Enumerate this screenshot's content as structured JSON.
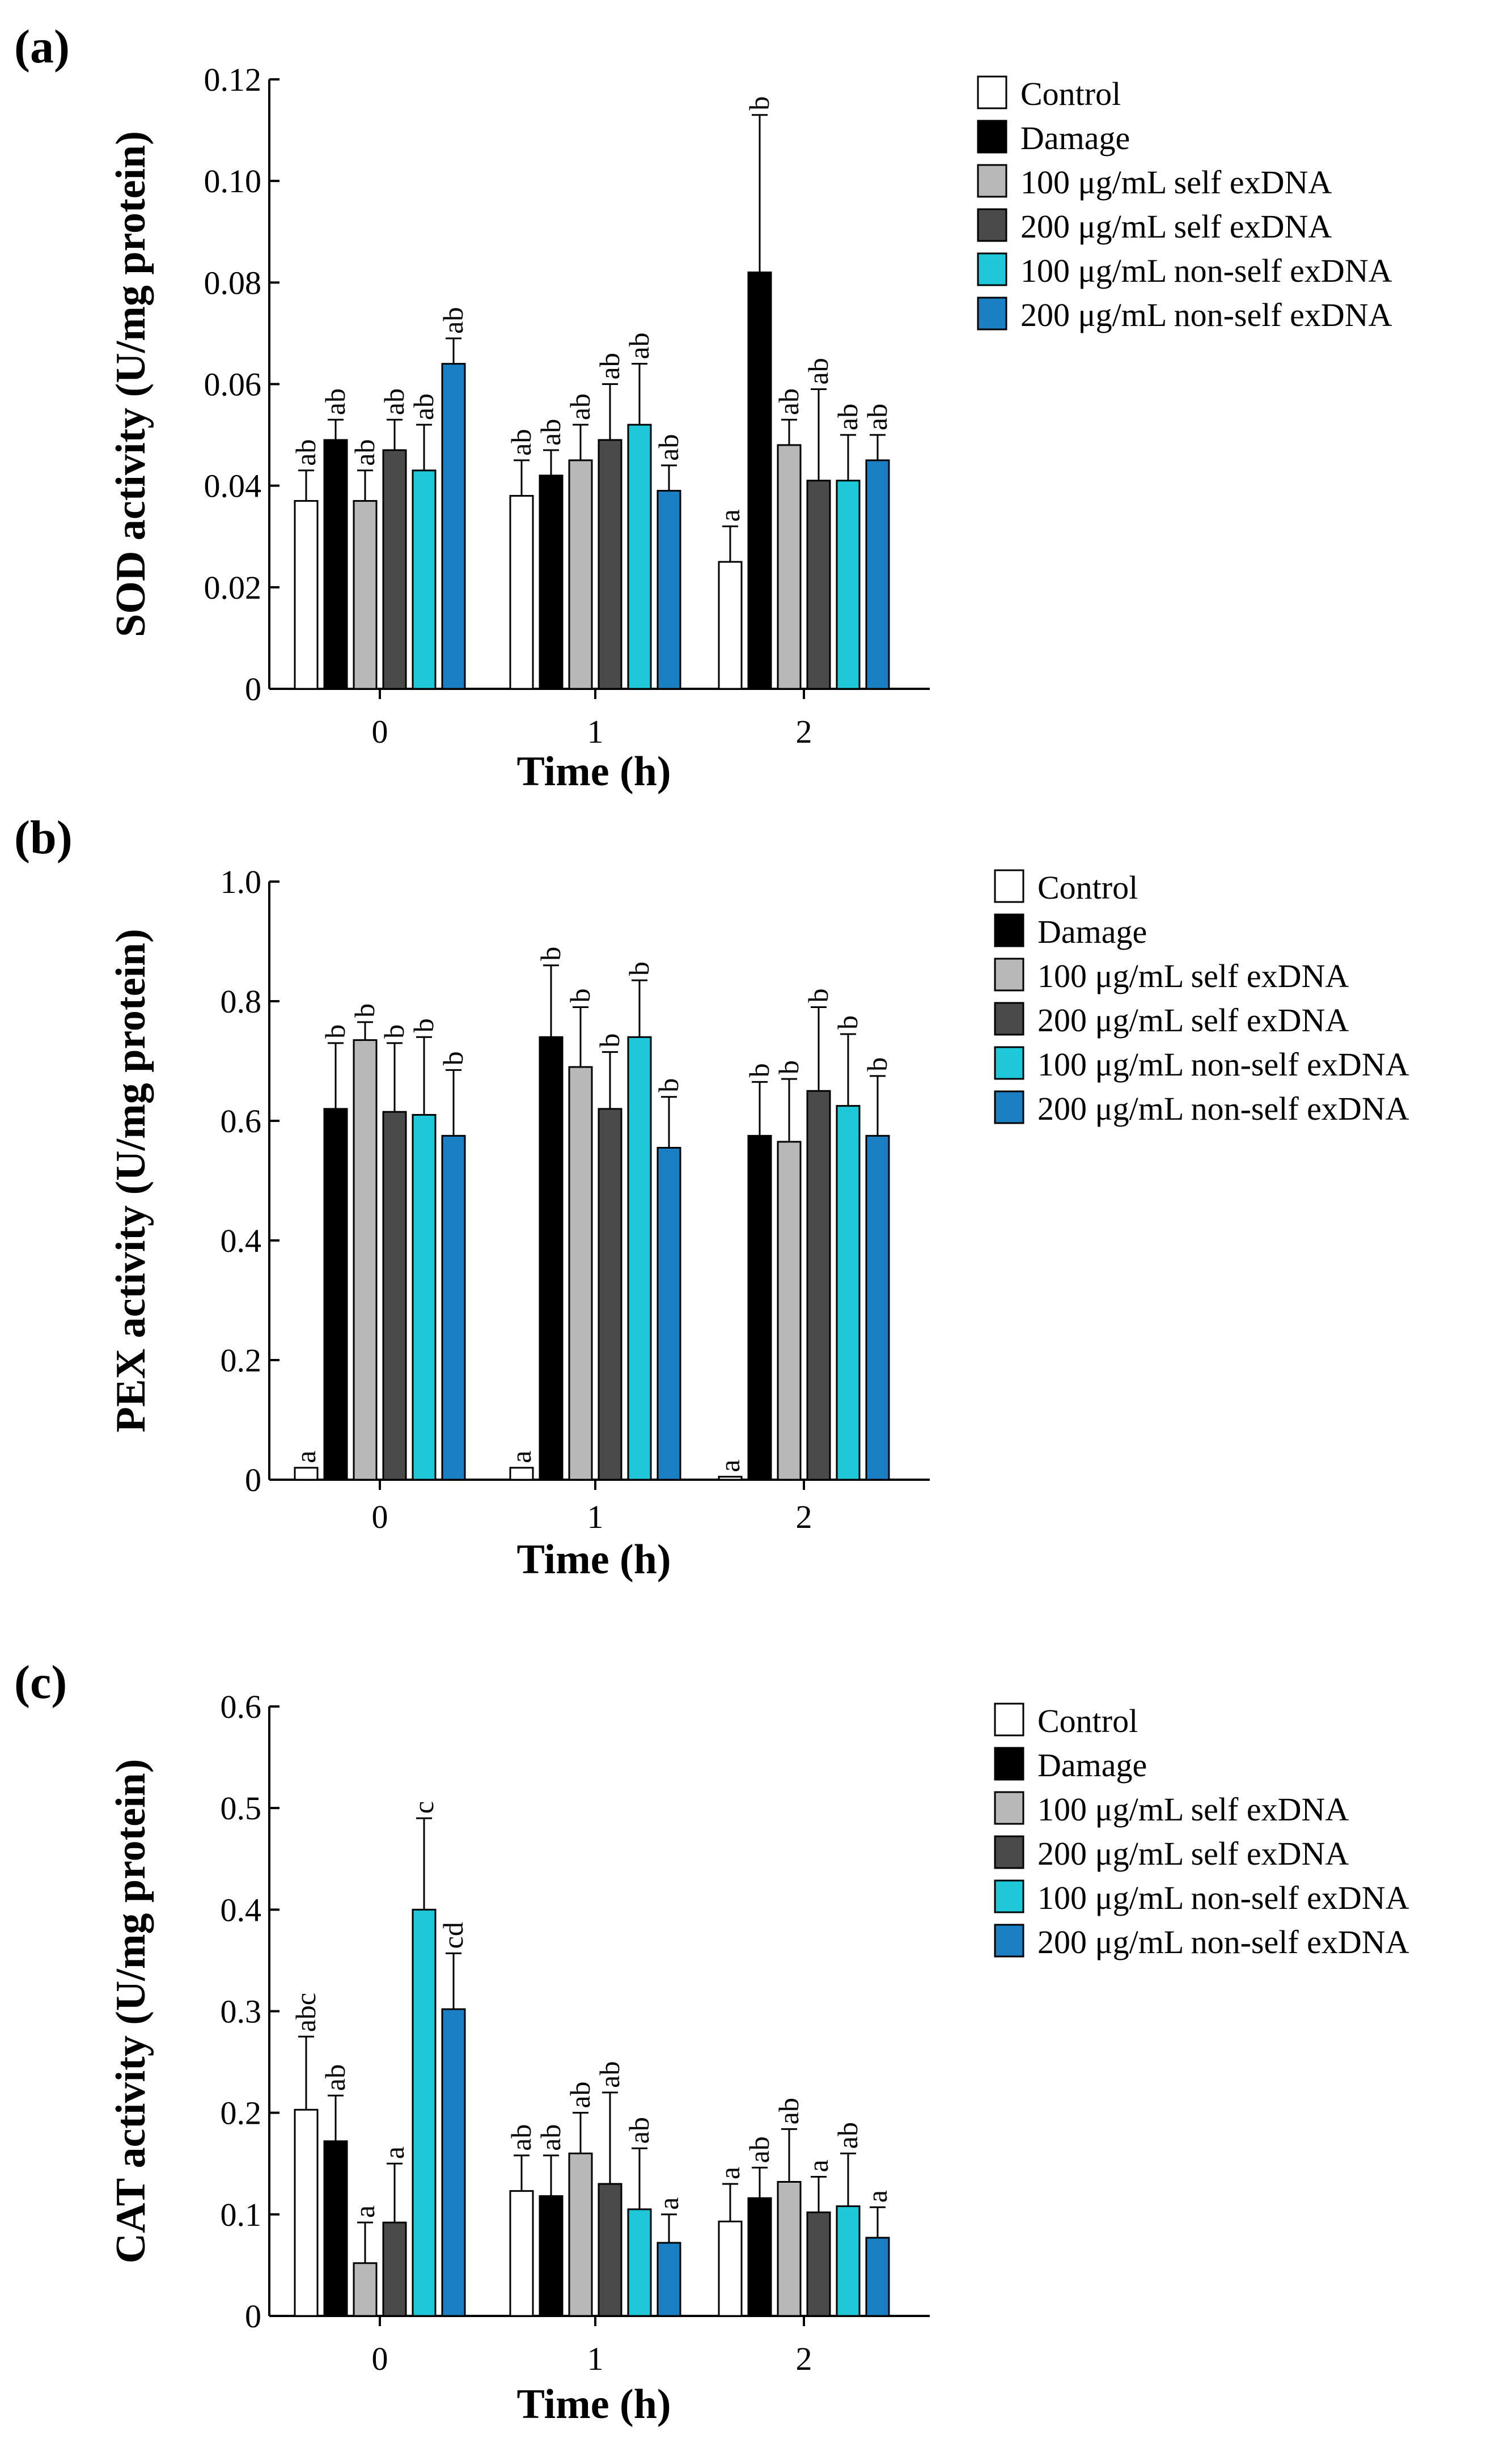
{
  "chart_data": [
    {
      "type": "bar",
      "panel_label": "(a)",
      "ylabel": "SOD activity (U/mg protein)",
      "xlabel": "Time (h)",
      "categories": [
        "0",
        "1",
        "2"
      ],
      "ylim": [
        0,
        0.12
      ],
      "yticks": [
        0,
        0.02,
        0.04,
        0.06,
        0.08,
        0.1,
        0.12
      ],
      "ytick_labels": [
        "0",
        "0.02",
        "0.04",
        "0.06",
        "0.08",
        "0.10",
        "0.12"
      ],
      "legend_position": "right",
      "series": [
        {
          "name": "Control",
          "color": "#ffffff",
          "values": [
            0.037,
            0.038,
            0.025
          ],
          "errors": [
            0.006,
            0.007,
            0.007
          ],
          "labels": [
            "ab",
            "ab",
            "a"
          ]
        },
        {
          "name": "Damage",
          "color": "#000000",
          "values": [
            0.049,
            0.042,
            0.082
          ],
          "errors": [
            0.004,
            0.005,
            0.031
          ],
          "labels": [
            "ab",
            "ab",
            "b"
          ]
        },
        {
          "name": "100 μg/mL self exDNA",
          "color": "#b8b8b8",
          "values": [
            0.037,
            0.045,
            0.048
          ],
          "errors": [
            0.006,
            0.007,
            0.005
          ],
          "labels": [
            "ab",
            "ab",
            "ab"
          ]
        },
        {
          "name": "200 μg/mL self exDNA",
          "color": "#4a4a4a",
          "values": [
            0.047,
            0.049,
            0.041
          ],
          "errors": [
            0.006,
            0.011,
            0.018
          ],
          "labels": [
            "ab",
            "ab",
            "ab"
          ]
        },
        {
          "name": "100 μg/mL non-self exDNA",
          "color": "#1ec8d8",
          "values": [
            0.043,
            0.052,
            0.041
          ],
          "errors": [
            0.009,
            0.012,
            0.009
          ],
          "labels": [
            "ab",
            "ab",
            "ab"
          ]
        },
        {
          "name": "200 μg/mL non-self exDNA",
          "color": "#1b7fc4",
          "values": [
            0.064,
            0.039,
            0.045
          ],
          "errors": [
            0.005,
            0.005,
            0.005
          ],
          "labels": [
            "ab",
            "ab",
            "ab"
          ]
        }
      ]
    },
    {
      "type": "bar",
      "panel_label": "(b)",
      "ylabel": "PEX activity (U/mg protein)",
      "xlabel": "Time (h)",
      "categories": [
        "0",
        "1",
        "2"
      ],
      "ylim": [
        0,
        1.0
      ],
      "yticks": [
        0,
        0.2,
        0.4,
        0.6,
        0.8,
        1.0
      ],
      "ytick_labels": [
        "0",
        "0.2",
        "0.4",
        "0.6",
        "0.8",
        "1.0"
      ],
      "legend_position": "right",
      "series": [
        {
          "name": "Control",
          "color": "#ffffff",
          "values": [
            0.02,
            0.02,
            0.005
          ],
          "errors": [
            0.0,
            0.0,
            0.0
          ],
          "labels": [
            "a",
            "a",
            "a"
          ]
        },
        {
          "name": "Damage",
          "color": "#000000",
          "values": [
            0.62,
            0.74,
            0.575
          ],
          "errors": [
            0.11,
            0.12,
            0.09
          ],
          "labels": [
            "b",
            "b",
            "b"
          ]
        },
        {
          "name": "100 μg/mL self exDNA",
          "color": "#b8b8b8",
          "values": [
            0.735,
            0.69,
            0.565
          ],
          "errors": [
            0.03,
            0.1,
            0.105
          ],
          "labels": [
            "b",
            "b",
            "b"
          ]
        },
        {
          "name": "200 μg/mL self exDNA",
          "color": "#4a4a4a",
          "values": [
            0.615,
            0.62,
            0.65
          ],
          "errors": [
            0.115,
            0.095,
            0.14
          ],
          "labels": [
            "b",
            "b",
            "b"
          ]
        },
        {
          "name": "100 μg/mL non-self exDNA",
          "color": "#1ec8d8",
          "values": [
            0.61,
            0.74,
            0.625
          ],
          "errors": [
            0.13,
            0.095,
            0.12
          ],
          "labels": [
            "b",
            "b",
            "b"
          ]
        },
        {
          "name": "200 μg/mL non-self exDNA",
          "color": "#1b7fc4",
          "values": [
            0.575,
            0.555,
            0.575
          ],
          "errors": [
            0.11,
            0.085,
            0.1
          ],
          "labels": [
            "b",
            "b",
            "b"
          ]
        }
      ]
    },
    {
      "type": "bar",
      "panel_label": "(c)",
      "ylabel": "CAT activity (U/mg protein)",
      "xlabel": "Time (h)",
      "categories": [
        "0",
        "1",
        "2"
      ],
      "ylim": [
        0,
        0.6
      ],
      "yticks": [
        0,
        0.1,
        0.2,
        0.3,
        0.4,
        0.5,
        0.6
      ],
      "ytick_labels": [
        "0",
        "0.1",
        "0.2",
        "0.3",
        "0.4",
        "0.5",
        "0.6"
      ],
      "legend_position": "right",
      "series": [
        {
          "name": "Control",
          "color": "#ffffff",
          "values": [
            0.203,
            0.123,
            0.093
          ],
          "errors": [
            0.072,
            0.035,
            0.037
          ],
          "labels": [
            "abc",
            "ab",
            "a"
          ]
        },
        {
          "name": "Damage",
          "color": "#000000",
          "values": [
            0.172,
            0.118,
            0.116
          ],
          "errors": [
            0.045,
            0.04,
            0.03
          ],
          "labels": [
            "ab",
            "ab",
            "ab"
          ]
        },
        {
          "name": "100 μg/mL self exDNA",
          "color": "#b8b8b8",
          "values": [
            0.052,
            0.16,
            0.132
          ],
          "errors": [
            0.04,
            0.04,
            0.052
          ],
          "labels": [
            "a",
            "ab",
            "ab"
          ]
        },
        {
          "name": "200 μg/mL self exDNA",
          "color": "#4a4a4a",
          "values": [
            0.092,
            0.13,
            0.102
          ],
          "errors": [
            0.058,
            0.09,
            0.035
          ],
          "labels": [
            "a",
            "ab",
            "a"
          ]
        },
        {
          "name": "100 μg/mL non-self exDNA",
          "color": "#1ec8d8",
          "values": [
            0.4,
            0.105,
            0.108
          ],
          "errors": [
            0.09,
            0.06,
            0.052
          ],
          "labels": [
            "c",
            "ab",
            "ab"
          ]
        },
        {
          "name": "200 μg/mL non-self exDNA",
          "color": "#1b7fc4",
          "values": [
            0.302,
            0.072,
            0.077
          ],
          "errors": [
            0.055,
            0.028,
            0.03
          ],
          "labels": [
            "cd",
            "a",
            "a"
          ]
        }
      ]
    }
  ]
}
